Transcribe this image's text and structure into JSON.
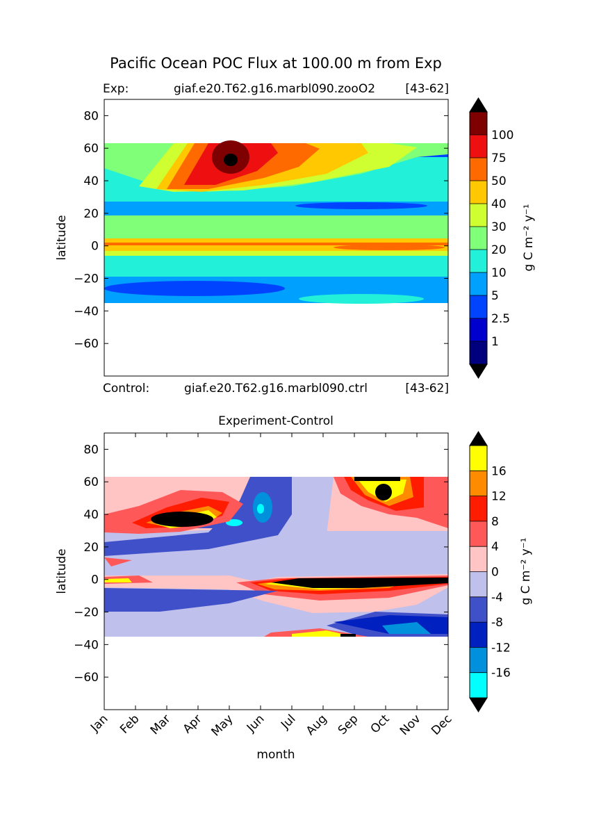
{
  "figure": {
    "title": "Pacific Ocean POC Flux at 100.00 m from Exp",
    "xlabel": "month"
  },
  "chart_data": [
    {
      "type": "heatmap",
      "title": "",
      "header_left_label": "Exp:",
      "header_case": "giaf.e20.T62.g16.marbl090.zooO2",
      "header_years": "[43-62]",
      "footer_left_label": "Control:",
      "footer_case": "giaf.e20.T62.g16.marbl090.ctrl",
      "footer_years": "[43-62]",
      "ylabel": "latitude",
      "colorbar_label": "g C m⁻² y⁻¹",
      "ylim": [
        -80,
        90
      ],
      "yticks": [
        "80",
        "60",
        "40",
        "20",
        "0",
        "−20",
        "−40",
        "−60"
      ],
      "ytick_values": [
        80,
        60,
        40,
        20,
        0,
        -20,
        -40,
        -60
      ],
      "xticks_shown": false,
      "data_lat_range": [
        -34,
        63
      ],
      "levels": [
        "1",
        "2.5",
        "5",
        "10",
        "20",
        "30",
        "40",
        "50",
        "75",
        "100"
      ],
      "colors": [
        "#00007f",
        "#0000cc",
        "#0044ff",
        "#00a0ff",
        "#22f0d8",
        "#80ff78",
        "#cfff30",
        "#ffc800",
        "#ff6a00",
        "#ee1010",
        "#7f0000"
      ],
      "colorbar_extend": {
        "under_color": "#000000",
        "over_color": "#000000"
      }
    },
    {
      "type": "heatmap",
      "title": "Experiment-Control",
      "ylabel": "latitude",
      "colorbar_label": "g C m⁻² y⁻¹",
      "ylim": [
        -80,
        90
      ],
      "yticks": [
        "80",
        "60",
        "40",
        "20",
        "0",
        "−20",
        "−40",
        "−60"
      ],
      "ytick_values": [
        80,
        60,
        40,
        20,
        0,
        -20,
        -40,
        -60
      ],
      "xticks": [
        "Jan",
        "Feb",
        "Mar",
        "Apr",
        "May",
        "Jun",
        "Jul",
        "Aug",
        "Sep",
        "Oct",
        "Nov",
        "Dec"
      ],
      "data_lat_range": [
        -34,
        63
      ],
      "levels": [
        "-16",
        "-12",
        "-8",
        "-4",
        "0",
        "4",
        "8",
        "12",
        "16"
      ],
      "colors": [
        "#00ffff",
        "#0090dc",
        "#0020c0",
        "#4050c8",
        "#c0c0ec",
        "#ffc4c4",
        "#ff5858",
        "#ff1c00",
        "#ff8c00",
        "#ffff00"
      ],
      "colorbar_extend": {
        "under_color": "#000000",
        "over_color": "#000000"
      }
    }
  ]
}
